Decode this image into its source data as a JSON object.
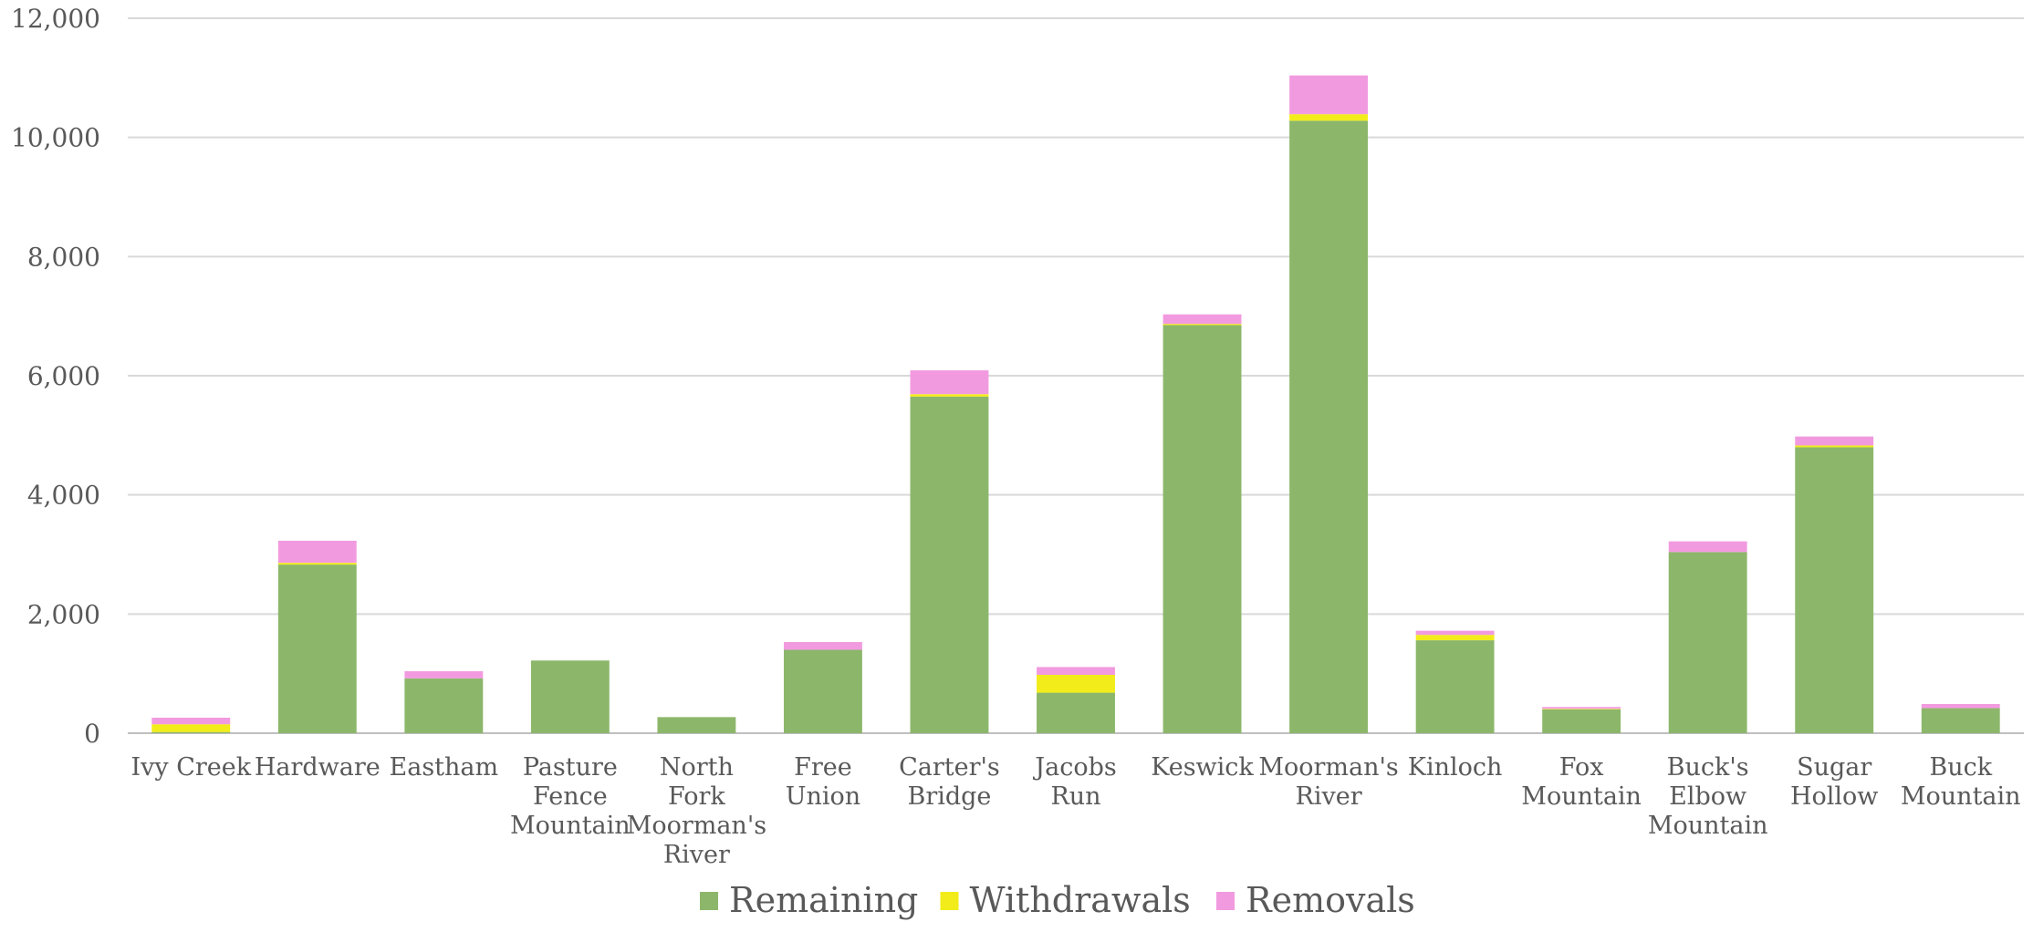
{
  "chart_data": {
    "type": "bar",
    "stacked": true,
    "title": "",
    "xlabel": "",
    "ylabel": "",
    "ylim": [
      0,
      12000
    ],
    "yticks": [
      "0",
      "2,000",
      "4,000",
      "6,000",
      "8,000",
      "10,000",
      "12,000"
    ],
    "grid": true,
    "legend_position": "bottom",
    "categories": [
      [
        "Ivy Creek"
      ],
      [
        "Hardware"
      ],
      [
        "Eastham"
      ],
      [
        "Pasture",
        "Fence",
        "Mountain"
      ],
      [
        "North",
        "Fork",
        "Moorman's",
        "River"
      ],
      [
        "Free",
        "Union"
      ],
      [
        "Carter's",
        "Bridge"
      ],
      [
        "Jacobs",
        "Run"
      ],
      [
        "Keswick"
      ],
      [
        "Moorman's",
        "River"
      ],
      [
        "Kinloch"
      ],
      [
        "Fox",
        "Mountain"
      ],
      [
        "Buck's",
        "Elbow",
        "Mountain"
      ],
      [
        "Sugar",
        "Hollow"
      ],
      [
        "Buck",
        "Mountain"
      ]
    ],
    "series": [
      {
        "name": "Remaining",
        "color": "#8cb76a",
        "values": [
          20,
          2830,
          920,
          1220,
          270,
          1400,
          5650,
          680,
          6850,
          10280,
          1560,
          400,
          3040,
          4800,
          420
        ]
      },
      {
        "name": "Withdrawals",
        "color": "#f2ec1a",
        "values": [
          130,
          30,
          0,
          0,
          0,
          0,
          40,
          300,
          20,
          110,
          90,
          10,
          0,
          30,
          0
        ]
      },
      {
        "name": "Removals",
        "color": "#f29ae0",
        "values": [
          110,
          370,
          120,
          0,
          0,
          130,
          400,
          130,
          160,
          650,
          70,
          30,
          180,
          150,
          70
        ]
      }
    ]
  }
}
